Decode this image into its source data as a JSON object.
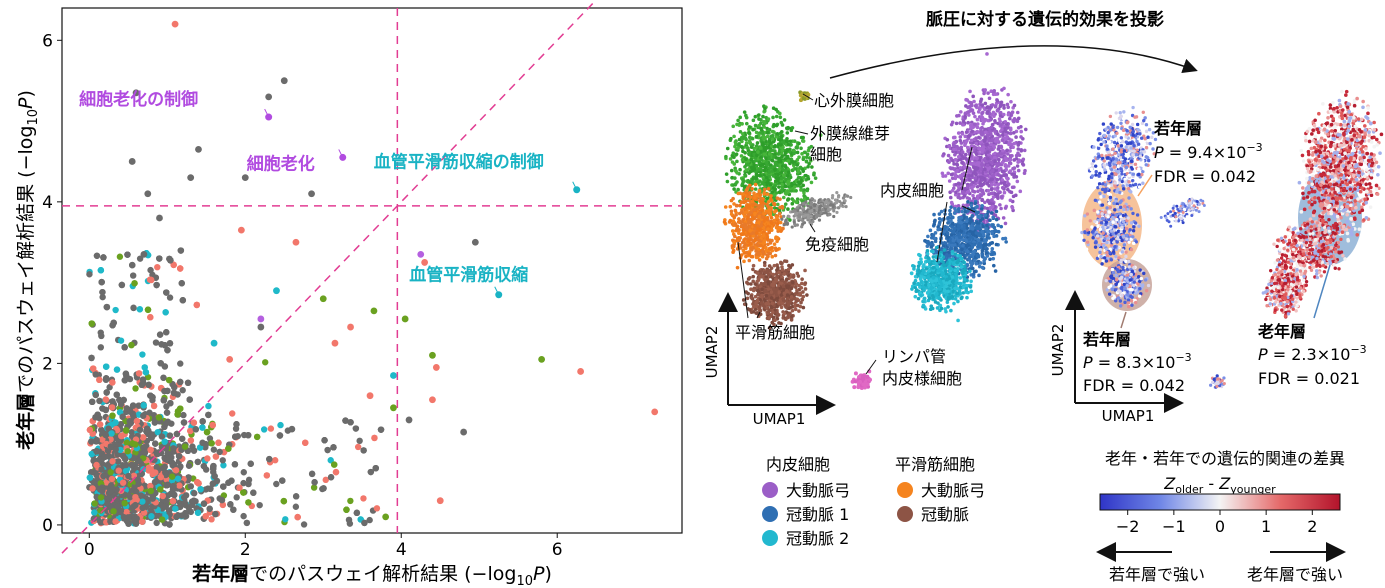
{
  "chart_data": [
    {
      "type": "scatter",
      "xlabel": "若年層でのパスウェイ解析結果 (−log10P)",
      "xlabel_parts": {
        "bold": "若年層",
        "rest": "でのパスウェイ解析結果 (−log",
        "sub": "10",
        "italic": "P",
        "end": ")"
      },
      "ylabel": "老年層でのパスウェイ解析結果 (−log10P)",
      "ylabel_parts": {
        "bold": "老年層",
        "rest": "でのパスウェイ解析結果 (−log",
        "sub": "10",
        "italic": "P",
        "end": ")"
      },
      "xlim": [
        -0.35,
        7.6
      ],
      "ylim": [
        -0.1,
        6.4
      ],
      "xticks": [
        "0",
        "2",
        "4",
        "6"
      ],
      "yticks": [
        "0",
        "2",
        "4",
        "6"
      ],
      "xtick_values": [
        0,
        2,
        4,
        6
      ],
      "ytick_values": [
        0,
        2,
        4,
        6
      ],
      "threshold_x": 3.95,
      "threshold_y": 3.95,
      "colors": {
        "gray": "#6b6b6b",
        "salmon": "#f2776b",
        "green": "#6aa120",
        "cyan": "#1fb9c9",
        "purple": "#b560e0",
        "magenta_line": "#e23d93",
        "annot_purple": "#b14be0",
        "annot_cyan": "#19b3c4"
      },
      "highlighted": [
        {
          "label": "細胞老化の制御",
          "x": 2.3,
          "y": 5.05,
          "color": "purple"
        },
        {
          "label": "細胞老化",
          "x": 3.25,
          "y": 4.55,
          "color": "purple"
        },
        {
          "label": "血管平滑筋収縮の制御",
          "x": 6.25,
          "y": 4.15,
          "color": "cyan"
        },
        {
          "label": "血管平滑筋収縮",
          "x": 5.25,
          "y": 2.85,
          "color": "cyan"
        }
      ],
      "points": [
        [
          1.1,
          6.2,
          "salmon"
        ],
        [
          0.6,
          5.35,
          "gray"
        ],
        [
          2.5,
          5.5,
          "gray"
        ],
        [
          2.3,
          5.3,
          "gray"
        ],
        [
          0.55,
          4.5,
          "gray"
        ],
        [
          1.4,
          4.65,
          "gray"
        ],
        [
          2.0,
          4.3,
          "gray"
        ],
        [
          1.3,
          4.3,
          "gray"
        ],
        [
          2.85,
          4.1,
          "gray"
        ],
        [
          0.75,
          4.1,
          "gray"
        ],
        [
          4.25,
          3.35,
          "purple"
        ],
        [
          4.3,
          3.25,
          "salmon"
        ],
        [
          4.95,
          3.5,
          "gray"
        ],
        [
          3.65,
          2.65,
          "green"
        ],
        [
          3.35,
          2.45,
          "salmon"
        ],
        [
          4.05,
          2.55,
          "green"
        ],
        [
          4.4,
          2.1,
          "green"
        ],
        [
          4.45,
          1.95,
          "salmon"
        ],
        [
          5.8,
          2.05,
          "green"
        ],
        [
          6.3,
          1.9,
          "salmon"
        ],
        [
          7.25,
          1.4,
          "salmon"
        ],
        [
          4.8,
          1.15,
          "gray"
        ],
        [
          3.9,
          1.85,
          "cyan"
        ],
        [
          3.6,
          1.6,
          "salmon"
        ],
        [
          3.9,
          1.45,
          "green"
        ],
        [
          4.4,
          1.55,
          "salmon"
        ],
        [
          4.1,
          1.3,
          "gray"
        ],
        [
          4.5,
          0.3,
          "salmon"
        ],
        [
          3.8,
          0.1,
          "green"
        ],
        [
          2.2,
          2.55,
          "purple"
        ],
        [
          2.2,
          2.45,
          "gray"
        ],
        [
          1.8,
          2.05,
          "salmon"
        ],
        [
          1.6,
          2.25,
          "cyan"
        ],
        [
          2.4,
          2.9,
          "cyan"
        ],
        [
          3.0,
          2.8,
          "green"
        ],
        [
          3.15,
          2.25,
          "salmon"
        ],
        [
          0.7,
          3.35,
          "gray"
        ],
        [
          2.65,
          3.5,
          "salmon"
        ],
        [
          1.95,
          3.65,
          "salmon"
        ],
        [
          0.9,
          3.8,
          "gray"
        ]
      ]
    },
    {
      "type": "umap",
      "title": "脈圧に対する遺伝的効果を投影",
      "x_axis": "UMAP1",
      "y_axis": "UMAP2",
      "cluster_labels": {
        "pericardial": "心外膜細胞",
        "fibroblast_1": "外膜線維芽",
        "fibroblast_2": "細胞",
        "endothelial": "内皮細胞",
        "immune": "免疫細胞",
        "smooth": "平滑筋細胞",
        "lymph_1": "リンパ管",
        "lymph_2": "内皮様細胞"
      }
    },
    {
      "type": "umap",
      "x_axis": "UMAP1",
      "y_axis": "UMAP2",
      "stats": {
        "top_label": "若年層",
        "top_p_label": "P",
        "top_p": "= 9.4×10",
        "top_p_exp": "−3",
        "top_fdr": "FDR = 0.042",
        "bottom_label": "若年層",
        "bottom_p_label": "P",
        "bottom_p": "= 8.3×10",
        "bottom_p_exp": "−3",
        "bottom_fdr": "FDR = 0.042",
        "right_label": "老年層",
        "right_p_label": "P",
        "right_p": "= 2.3×10",
        "right_p_exp": "−3",
        "right_fdr": "FDR = 0.021"
      }
    }
  ],
  "legend": {
    "endo_title": "内皮細胞",
    "endo_items": [
      {
        "label": "大動脈弓",
        "color": "#9b5ec7"
      },
      {
        "label": "冠動脈 1",
        "color": "#2f6fb3"
      },
      {
        "label": "冠動脈 2",
        "color": "#22b8cf"
      }
    ],
    "smooth_title": "平滑筋細胞",
    "smooth_items": [
      {
        "label": "大動脈弓",
        "color": "#f5841f"
      },
      {
        "label": "冠動脈",
        "color": "#8d5445"
      }
    ]
  },
  "colorbar": {
    "title": "老年・若年での遺伝的関連の差異",
    "subtitle_z": "Z",
    "sub_older": "older",
    "minus": " - ",
    "sub_younger": "younger",
    "ticks": [
      "−2",
      "−1",
      "0",
      "1",
      "2"
    ],
    "tick_values": [
      -2,
      -1,
      0,
      1,
      2
    ],
    "range": [
      -2.6,
      2.6
    ],
    "left_arrow_label": "若年層で強い",
    "right_arrow_label": "老年層で強い"
  }
}
